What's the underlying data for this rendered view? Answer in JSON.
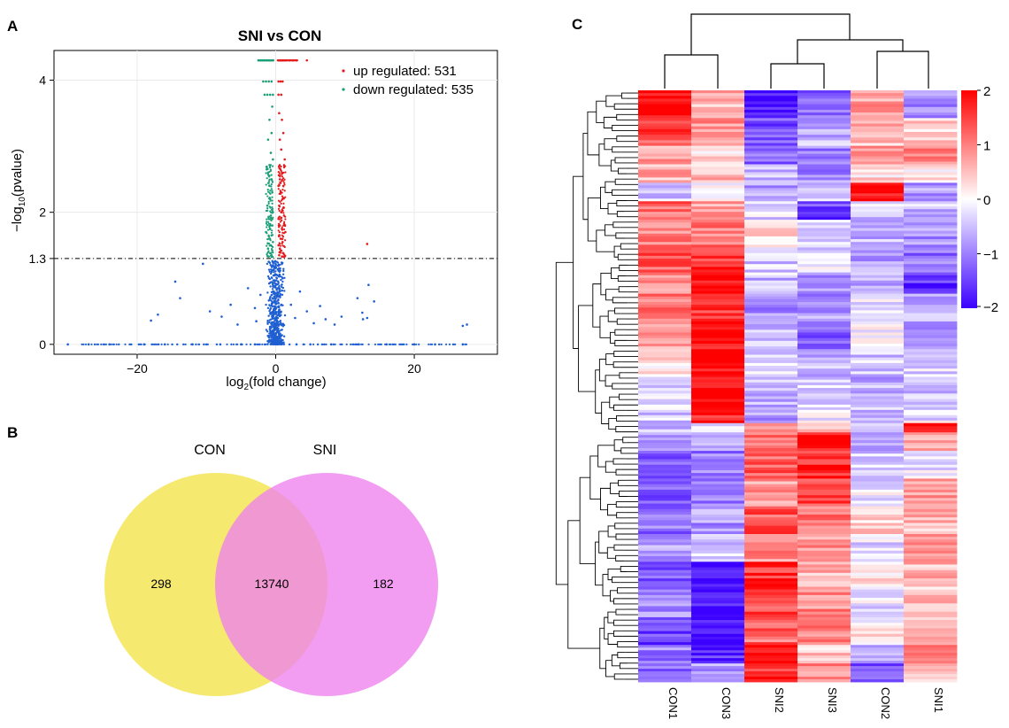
{
  "panels": {
    "a": "A",
    "b": "B",
    "c": "C"
  },
  "chart_data": [
    {
      "type": "scatter",
      "title": "SNI  vs  CON",
      "xlabel": "log2(fold change)",
      "xlabel_base": "log",
      "xlabel_sub": "2",
      "xlabel_rest": "(fold change)",
      "ylabel_base": "−log",
      "ylabel_sub": "10",
      "ylabel_rest": "(pvalue)",
      "xlim": [
        -32,
        32
      ],
      "ylim": [
        -0.15,
        4.45
      ],
      "x_ticks": [
        -20,
        0,
        20
      ],
      "x_tick_labels": [
        "−20",
        "0",
        "20"
      ],
      "y_ticks": [
        0,
        1.3,
        2,
        4
      ],
      "y_tick_labels": [
        "0",
        "1.3",
        "2",
        "4"
      ],
      "threshold_y": 1.3,
      "grid": true,
      "legend_position": "top-right",
      "colors": {
        "up": "#e41a1c",
        "down": "#1b9e77",
        "ns": "#1f5fd1"
      },
      "series": [
        {
          "name": "up regulated: 531",
          "legend": "up regulated: 531",
          "color": "#e41a1c",
          "points": [
            [
              0.4,
              4.3
            ],
            [
              0.6,
              4.3
            ],
            [
              0.8,
              4.3
            ],
            [
              1.0,
              4.3
            ],
            [
              1.2,
              4.3
            ],
            [
              1.5,
              4.3
            ],
            [
              2.0,
              4.3
            ],
            [
              2.5,
              4.3
            ],
            [
              3.0,
              4.3
            ],
            [
              4.5,
              4.3
            ],
            [
              0.4,
              3.98
            ],
            [
              0.7,
              3.98
            ],
            [
              1.0,
              3.98
            ],
            [
              0.4,
              3.78
            ],
            [
              0.8,
              3.78
            ],
            [
              0.5,
              3.5
            ],
            [
              0.9,
              3.4
            ],
            [
              1.1,
              3.2
            ],
            [
              0.6,
              3.1
            ],
            [
              0.8,
              2.95
            ],
            [
              1.3,
              2.8
            ],
            [
              0.5,
              2.7
            ],
            [
              0.9,
              2.6
            ],
            [
              0.6,
              2.5
            ],
            [
              0.4,
              2.4
            ],
            [
              0.7,
              2.3
            ],
            [
              1.0,
              2.2
            ],
            [
              0.5,
              2.1
            ],
            [
              0.8,
              2.0
            ],
            [
              1.2,
              1.95
            ],
            [
              0.4,
              1.9
            ],
            [
              0.6,
              1.8
            ],
            [
              0.9,
              1.75
            ],
            [
              1.4,
              1.7
            ],
            [
              0.5,
              1.65
            ],
            [
              0.7,
              1.6
            ],
            [
              1.0,
              1.55
            ],
            [
              0.4,
              1.5
            ],
            [
              0.6,
              1.45
            ],
            [
              0.8,
              1.42
            ],
            [
              1.1,
              1.38
            ],
            [
              0.5,
              1.35
            ],
            [
              0.9,
              1.33
            ],
            [
              13.2,
              1.52
            ]
          ]
        },
        {
          "name": "down regulated: 535",
          "legend": "down regulated: 535",
          "color": "#1b9e77",
          "points": [
            [
              -2.5,
              4.3
            ],
            [
              -2.2,
              4.3
            ],
            [
              -1.9,
              4.3
            ],
            [
              -1.6,
              4.3
            ],
            [
              -1.3,
              4.3
            ],
            [
              -1.0,
              4.3
            ],
            [
              -0.7,
              4.3
            ],
            [
              -0.4,
              4.3
            ],
            [
              -1.8,
              3.98
            ],
            [
              -1.4,
              3.98
            ],
            [
              -1.0,
              3.98
            ],
            [
              -0.6,
              3.98
            ],
            [
              -1.6,
              3.78
            ],
            [
              -1.2,
              3.78
            ],
            [
              -0.8,
              3.78
            ],
            [
              -0.4,
              3.78
            ],
            [
              -0.5,
              3.6
            ],
            [
              -0.9,
              3.4
            ],
            [
              -0.6,
              3.2
            ],
            [
              -1.1,
              3.1
            ],
            [
              -0.7,
              2.9
            ],
            [
              -0.4,
              2.8
            ],
            [
              -1.3,
              2.65
            ],
            [
              -0.6,
              2.5
            ],
            [
              -0.9,
              2.4
            ],
            [
              -0.5,
              2.3
            ],
            [
              -0.8,
              2.2
            ],
            [
              -1.2,
              2.1
            ],
            [
              -0.4,
              2.0
            ],
            [
              -0.7,
              1.95
            ],
            [
              -1.0,
              1.9
            ],
            [
              -0.5,
              1.8
            ],
            [
              -0.8,
              1.75
            ],
            [
              -1.4,
              1.7
            ],
            [
              -0.6,
              1.65
            ],
            [
              -0.9,
              1.6
            ],
            [
              -0.4,
              1.55
            ],
            [
              -0.7,
              1.5
            ],
            [
              -1.1,
              1.45
            ],
            [
              -0.5,
              1.42
            ],
            [
              -0.8,
              1.38
            ],
            [
              -0.6,
              1.35
            ],
            [
              -1.0,
              1.33
            ]
          ]
        },
        {
          "name": "",
          "color": "#1f5fd1",
          "points": [
            [
              -30,
              0
            ],
            [
              -27,
              0
            ],
            [
              -24,
              0
            ],
            [
              -19,
              0
            ],
            [
              -16,
              0
            ],
            [
              -12,
              0
            ],
            [
              -8,
              0
            ],
            [
              -5,
              0
            ],
            [
              -3,
              0
            ],
            [
              3,
              0
            ],
            [
              5,
              0
            ],
            [
              8,
              0
            ],
            [
              12,
              0
            ],
            [
              16,
              0
            ],
            [
              20,
              0
            ],
            [
              23,
              0
            ],
            [
              27,
              0
            ],
            [
              -14.5,
              0.95
            ],
            [
              -13.8,
              0.7
            ],
            [
              -18,
              0.36
            ],
            [
              -17,
              0.45
            ],
            [
              -10.5,
              1.22
            ],
            [
              -9.5,
              0.5
            ],
            [
              -7.8,
              0.42
            ],
            [
              -6.5,
              0.6
            ],
            [
              -5.5,
              0.3
            ],
            [
              -4,
              0.85
            ],
            [
              -3,
              0.55
            ],
            [
              -2.2,
              0.75
            ],
            [
              -2.8,
              0.35
            ],
            [
              2.2,
              0.6
            ],
            [
              2.8,
              0.4
            ],
            [
              3.5,
              0.8
            ],
            [
              4.5,
              0.5
            ],
            [
              5.5,
              0.32
            ],
            [
              6.4,
              0.58
            ],
            [
              7.2,
              0.38
            ],
            [
              8.5,
              0.3
            ],
            [
              9.5,
              0.42
            ],
            [
              11.8,
              0.7
            ],
            [
              12.5,
              0.48
            ],
            [
              13.4,
              0.9
            ],
            [
              14.2,
              0.65
            ],
            [
              12.6,
              0.38
            ],
            [
              13.2,
              0.4
            ],
            [
              27,
              0.28
            ],
            [
              27.6,
              0.3
            ],
            [
              -1.0,
              1.25
            ],
            [
              -0.6,
              1.1
            ],
            [
              0.6,
              1.15
            ],
            [
              1.0,
              1.0
            ],
            [
              -0.4,
              0.9
            ],
            [
              0.4,
              0.85
            ],
            [
              -0.8,
              0.7
            ],
            [
              0.8,
              0.6
            ],
            [
              -0.3,
              0.5
            ],
            [
              0.3,
              0.4
            ],
            [
              -0.5,
              0.3
            ],
            [
              0.5,
              0.2
            ]
          ]
        }
      ]
    },
    {
      "type": "venn",
      "sets": [
        {
          "name": "CON",
          "only": "298",
          "color": "#f5e96f"
        },
        {
          "name": "SNI",
          "only": "182",
          "color": "#ee82ee"
        }
      ],
      "intersection": "13740"
    },
    {
      "type": "heatmap",
      "columns": [
        "CON1",
        "CON3",
        "SNI2",
        "SNI3",
        "CON2",
        "SNI1"
      ],
      "colorbar": {
        "min": -2,
        "max": 2,
        "ticks": [
          "2",
          "1",
          "0",
          "−1",
          "−2"
        ],
        "low": "#3b00ff",
        "mid": "#ffffff",
        "high": "#ff0000"
      },
      "row_blocks": [
        {
          "weight": 3,
          "values": [
            1.9,
            0.6,
            -1.8,
            -1.2,
            0.8,
            -0.9
          ]
        },
        {
          "weight": 3,
          "values": [
            1.4,
            0.9,
            -1.4,
            -0.6,
            0.5,
            0.4
          ]
        },
        {
          "weight": 2,
          "values": [
            0.8,
            0.3,
            -1.2,
            -1.0,
            0.9,
            0.9
          ]
        },
        {
          "weight": 2,
          "values": [
            0.6,
            0.5,
            -0.6,
            -0.9,
            0.3,
            0.2
          ]
        },
        {
          "weight": 2,
          "values": [
            -0.4,
            0.1,
            -0.8,
            -0.5,
            2.0,
            -0.8
          ]
        },
        {
          "weight": 2,
          "values": [
            1.2,
            0.8,
            -0.3,
            -1.5,
            -0.4,
            -0.5
          ]
        },
        {
          "weight": 3,
          "values": [
            1.0,
            1.1,
            0.2,
            -0.4,
            -0.6,
            -0.8
          ]
        },
        {
          "weight": 3,
          "values": [
            1.3,
            1.6,
            -0.4,
            -0.3,
            -0.7,
            -1.1
          ]
        },
        {
          "weight": 2,
          "values": [
            0.9,
            1.9,
            -0.6,
            -0.9,
            -0.6,
            -1.6
          ]
        },
        {
          "weight": 3,
          "values": [
            1.1,
            1.5,
            -0.9,
            -0.8,
            -0.3,
            -0.6
          ]
        },
        {
          "weight": 3,
          "values": [
            0.8,
            1.8,
            -0.6,
            -1.3,
            -0.1,
            -0.7
          ]
        },
        {
          "weight": 3,
          "values": [
            0.2,
            2.0,
            -0.4,
            -0.6,
            -0.4,
            -0.3
          ]
        },
        {
          "weight": 3,
          "values": [
            -0.2,
            2.0,
            -0.6,
            -0.4,
            -0.6,
            -0.5
          ]
        },
        {
          "weight": 2,
          "values": [
            -0.4,
            1.8,
            -0.8,
            -0.2,
            -0.5,
            -0.2
          ]
        },
        {
          "weight": 1,
          "values": [
            -0.6,
            -0.3,
            0.6,
            0.3,
            -0.1,
            2.0
          ]
        },
        {
          "weight": 2,
          "values": [
            -0.9,
            -0.6,
            1.0,
            1.8,
            -0.8,
            0.6
          ]
        },
        {
          "weight": 3,
          "values": [
            -1.2,
            -1.0,
            1.2,
            1.7,
            -0.4,
            -0.2
          ]
        },
        {
          "weight": 3,
          "values": [
            -1.4,
            -1.1,
            0.7,
            1.5,
            -0.2,
            0.9
          ]
        },
        {
          "weight": 3,
          "values": [
            -1.1,
            -0.8,
            1.3,
            1.1,
            0.3,
            0.6
          ]
        },
        {
          "weight": 3,
          "values": [
            -0.8,
            -0.4,
            0.9,
            0.8,
            -0.3,
            1.0
          ]
        },
        {
          "weight": 3,
          "values": [
            -1.3,
            -2.0,
            1.6,
            0.6,
            0.2,
            0.5
          ]
        },
        {
          "weight": 3,
          "values": [
            -0.9,
            -1.9,
            1.4,
            0.9,
            -0.2,
            0.7
          ]
        },
        {
          "weight": 3,
          "values": [
            -1.5,
            -2.0,
            1.2,
            1.1,
            0.1,
            0.4
          ]
        },
        {
          "weight": 2,
          "values": [
            -1.0,
            -1.7,
            1.9,
            0.4,
            -0.6,
            0.8
          ]
        },
        {
          "weight": 2,
          "values": [
            -1.2,
            -0.7,
            1.7,
            1.0,
            -1.3,
            0.6
          ]
        }
      ]
    }
  ]
}
